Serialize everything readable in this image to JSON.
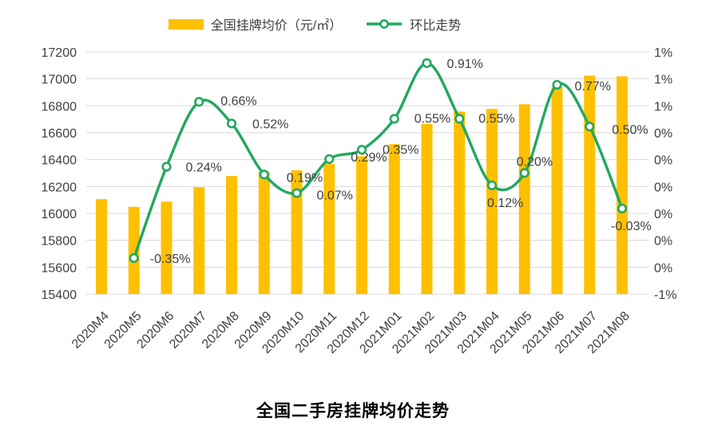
{
  "chart_data": {
    "type": "combo",
    "title": "全国二手房挂牌均价走势",
    "categories": [
      "2020M4",
      "2020M5",
      "2020M6",
      "2020M7",
      "2020M8",
      "2020M9",
      "2020M10",
      "2020M11",
      "2020M12",
      "2021M01",
      "2021M02",
      "2021M03",
      "2021M04",
      "2021M05",
      "2021M06",
      "2021M07",
      "2021M08"
    ],
    "series": [
      {
        "name": "全国挂牌均价（元/㎡）",
        "type": "bar",
        "axis": "left",
        "color": "#FFC000",
        "values": [
          16106,
          16049,
          16088,
          16194,
          16278,
          16309,
          16320,
          16368,
          16425,
          16515,
          16665,
          16757,
          16777,
          16811,
          16940,
          17024,
          17019
        ]
      },
      {
        "name": "环比走势",
        "type": "line",
        "axis": "right",
        "color": "#21A85F",
        "marker_fill": "#FFFFFF",
        "values": [
          null,
          -0.35,
          0.24,
          0.66,
          0.52,
          0.19,
          0.07,
          0.29,
          0.35,
          0.55,
          0.91,
          0.55,
          0.12,
          0.2,
          0.77,
          0.5,
          -0.03
        ],
        "point_labels": [
          null,
          "-0.35%",
          "0.24%",
          "0.66%",
          "0.52%",
          "0.19%",
          "0.07%",
          "0.29%",
          "0.35%",
          "0.55%",
          "0.91%",
          "0.55%",
          "0.12%",
          "0.20%",
          "0.77%",
          "0.50%",
          "-0.03%"
        ],
        "point_label_offsets": [
          null,
          [
            20,
            6
          ],
          [
            24,
            6
          ],
          [
            27,
            4
          ],
          [
            26,
            6
          ],
          [
            28,
            9
          ],
          [
            25,
            8
          ],
          [
            27,
            3
          ],
          [
            26,
            5
          ],
          [
            25,
            5
          ],
          [
            25,
            6
          ],
          [
            24,
            5
          ],
          [
            -6,
            27
          ],
          [
            -10,
            -9
          ],
          [
            22,
            7
          ],
          [
            28,
            9
          ],
          [
            -14,
            27
          ]
        ]
      }
    ],
    "axes": {
      "left": {
        "min": 15400,
        "max": 17200,
        "step": 200,
        "tick_labels": [
          "17200",
          "17000",
          "16800",
          "16600",
          "16400",
          "16200",
          "16000",
          "15800",
          "15600",
          "15400"
        ]
      },
      "right": {
        "min": -0.583,
        "max": 0.982,
        "tick_labels": [
          "1%",
          "1%",
          "1%",
          "0%",
          "0%",
          "0%",
          "0%",
          "0%",
          "0%",
          "-1%"
        ]
      }
    },
    "grid": true,
    "legend_position": "top",
    "colors": {
      "grid": "#D9D9D9",
      "tick_text": "#404040",
      "data_label_text": "#404040"
    }
  }
}
